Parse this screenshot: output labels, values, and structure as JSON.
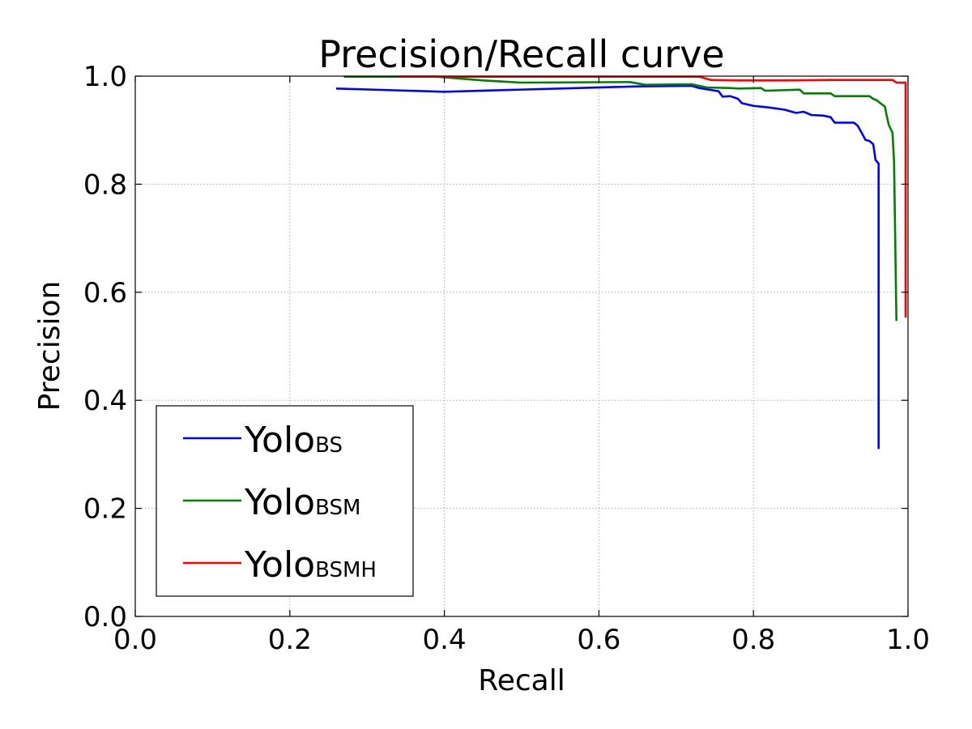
{
  "chart_data": {
    "type": "line",
    "title": "Precision/Recall curve",
    "xlabel": "Recall",
    "ylabel": "Precision",
    "xlim": [
      0.0,
      1.0
    ],
    "ylim": [
      0.0,
      1.0
    ],
    "xticks": [
      "0.0",
      "0.2",
      "0.4",
      "0.6",
      "0.8",
      "1.0"
    ],
    "yticks": [
      "0.0",
      "0.2",
      "0.4",
      "0.6",
      "0.8",
      "1.0"
    ],
    "grid": true,
    "legend_position": "lower-left",
    "series": [
      {
        "name": "Yolo",
        "name_sub": "BS",
        "color": "#0000ff",
        "points": [
          [
            0.26,
            0.977
          ],
          [
            0.4,
            0.971
          ],
          [
            0.55,
            0.977
          ],
          [
            0.65,
            0.981
          ],
          [
            0.72,
            0.982
          ],
          [
            0.73,
            0.978
          ],
          [
            0.755,
            0.972
          ],
          [
            0.76,
            0.962
          ],
          [
            0.77,
            0.963
          ],
          [
            0.78,
            0.958
          ],
          [
            0.785,
            0.95
          ],
          [
            0.8,
            0.945
          ],
          [
            0.82,
            0.942
          ],
          [
            0.84,
            0.938
          ],
          [
            0.855,
            0.932
          ],
          [
            0.865,
            0.934
          ],
          [
            0.875,
            0.928
          ],
          [
            0.89,
            0.927
          ],
          [
            0.9,
            0.924
          ],
          [
            0.905,
            0.914
          ],
          [
            0.93,
            0.914
          ],
          [
            0.935,
            0.908
          ],
          [
            0.94,
            0.895
          ],
          [
            0.945,
            0.882
          ],
          [
            0.95,
            0.88
          ],
          [
            0.955,
            0.874
          ],
          [
            0.958,
            0.845
          ],
          [
            0.962,
            0.838
          ],
          [
            0.962,
            0.31
          ]
        ]
      },
      {
        "name": "Yolo",
        "name_sub": "BSM",
        "color": "#008000",
        "points": [
          [
            0.27,
            0.999
          ],
          [
            0.39,
            0.999
          ],
          [
            0.45,
            0.992
          ],
          [
            0.5,
            0.988
          ],
          [
            0.64,
            0.989
          ],
          [
            0.66,
            0.984
          ],
          [
            0.72,
            0.985
          ],
          [
            0.74,
            0.979
          ],
          [
            0.77,
            0.978
          ],
          [
            0.78,
            0.977
          ],
          [
            0.81,
            0.978
          ],
          [
            0.815,
            0.973
          ],
          [
            0.86,
            0.975
          ],
          [
            0.865,
            0.968
          ],
          [
            0.9,
            0.968
          ],
          [
            0.905,
            0.963
          ],
          [
            0.95,
            0.963
          ],
          [
            0.955,
            0.958
          ],
          [
            0.96,
            0.955
          ],
          [
            0.965,
            0.949
          ],
          [
            0.97,
            0.944
          ],
          [
            0.972,
            0.93
          ],
          [
            0.975,
            0.91
          ],
          [
            0.98,
            0.895
          ],
          [
            0.982,
            0.84
          ],
          [
            0.985,
            0.547
          ]
        ]
      },
      {
        "name": "Yolo",
        "name_sub": "BSMH",
        "color": "#ff0000",
        "points": [
          [
            0.34,
            0.999
          ],
          [
            0.73,
            0.999
          ],
          [
            0.745,
            0.993
          ],
          [
            0.78,
            0.992
          ],
          [
            0.84,
            0.992
          ],
          [
            0.9,
            0.993
          ],
          [
            0.98,
            0.993
          ],
          [
            0.985,
            0.988
          ],
          [
            0.997,
            0.988
          ],
          [
            0.997,
            0.553
          ]
        ]
      }
    ]
  }
}
